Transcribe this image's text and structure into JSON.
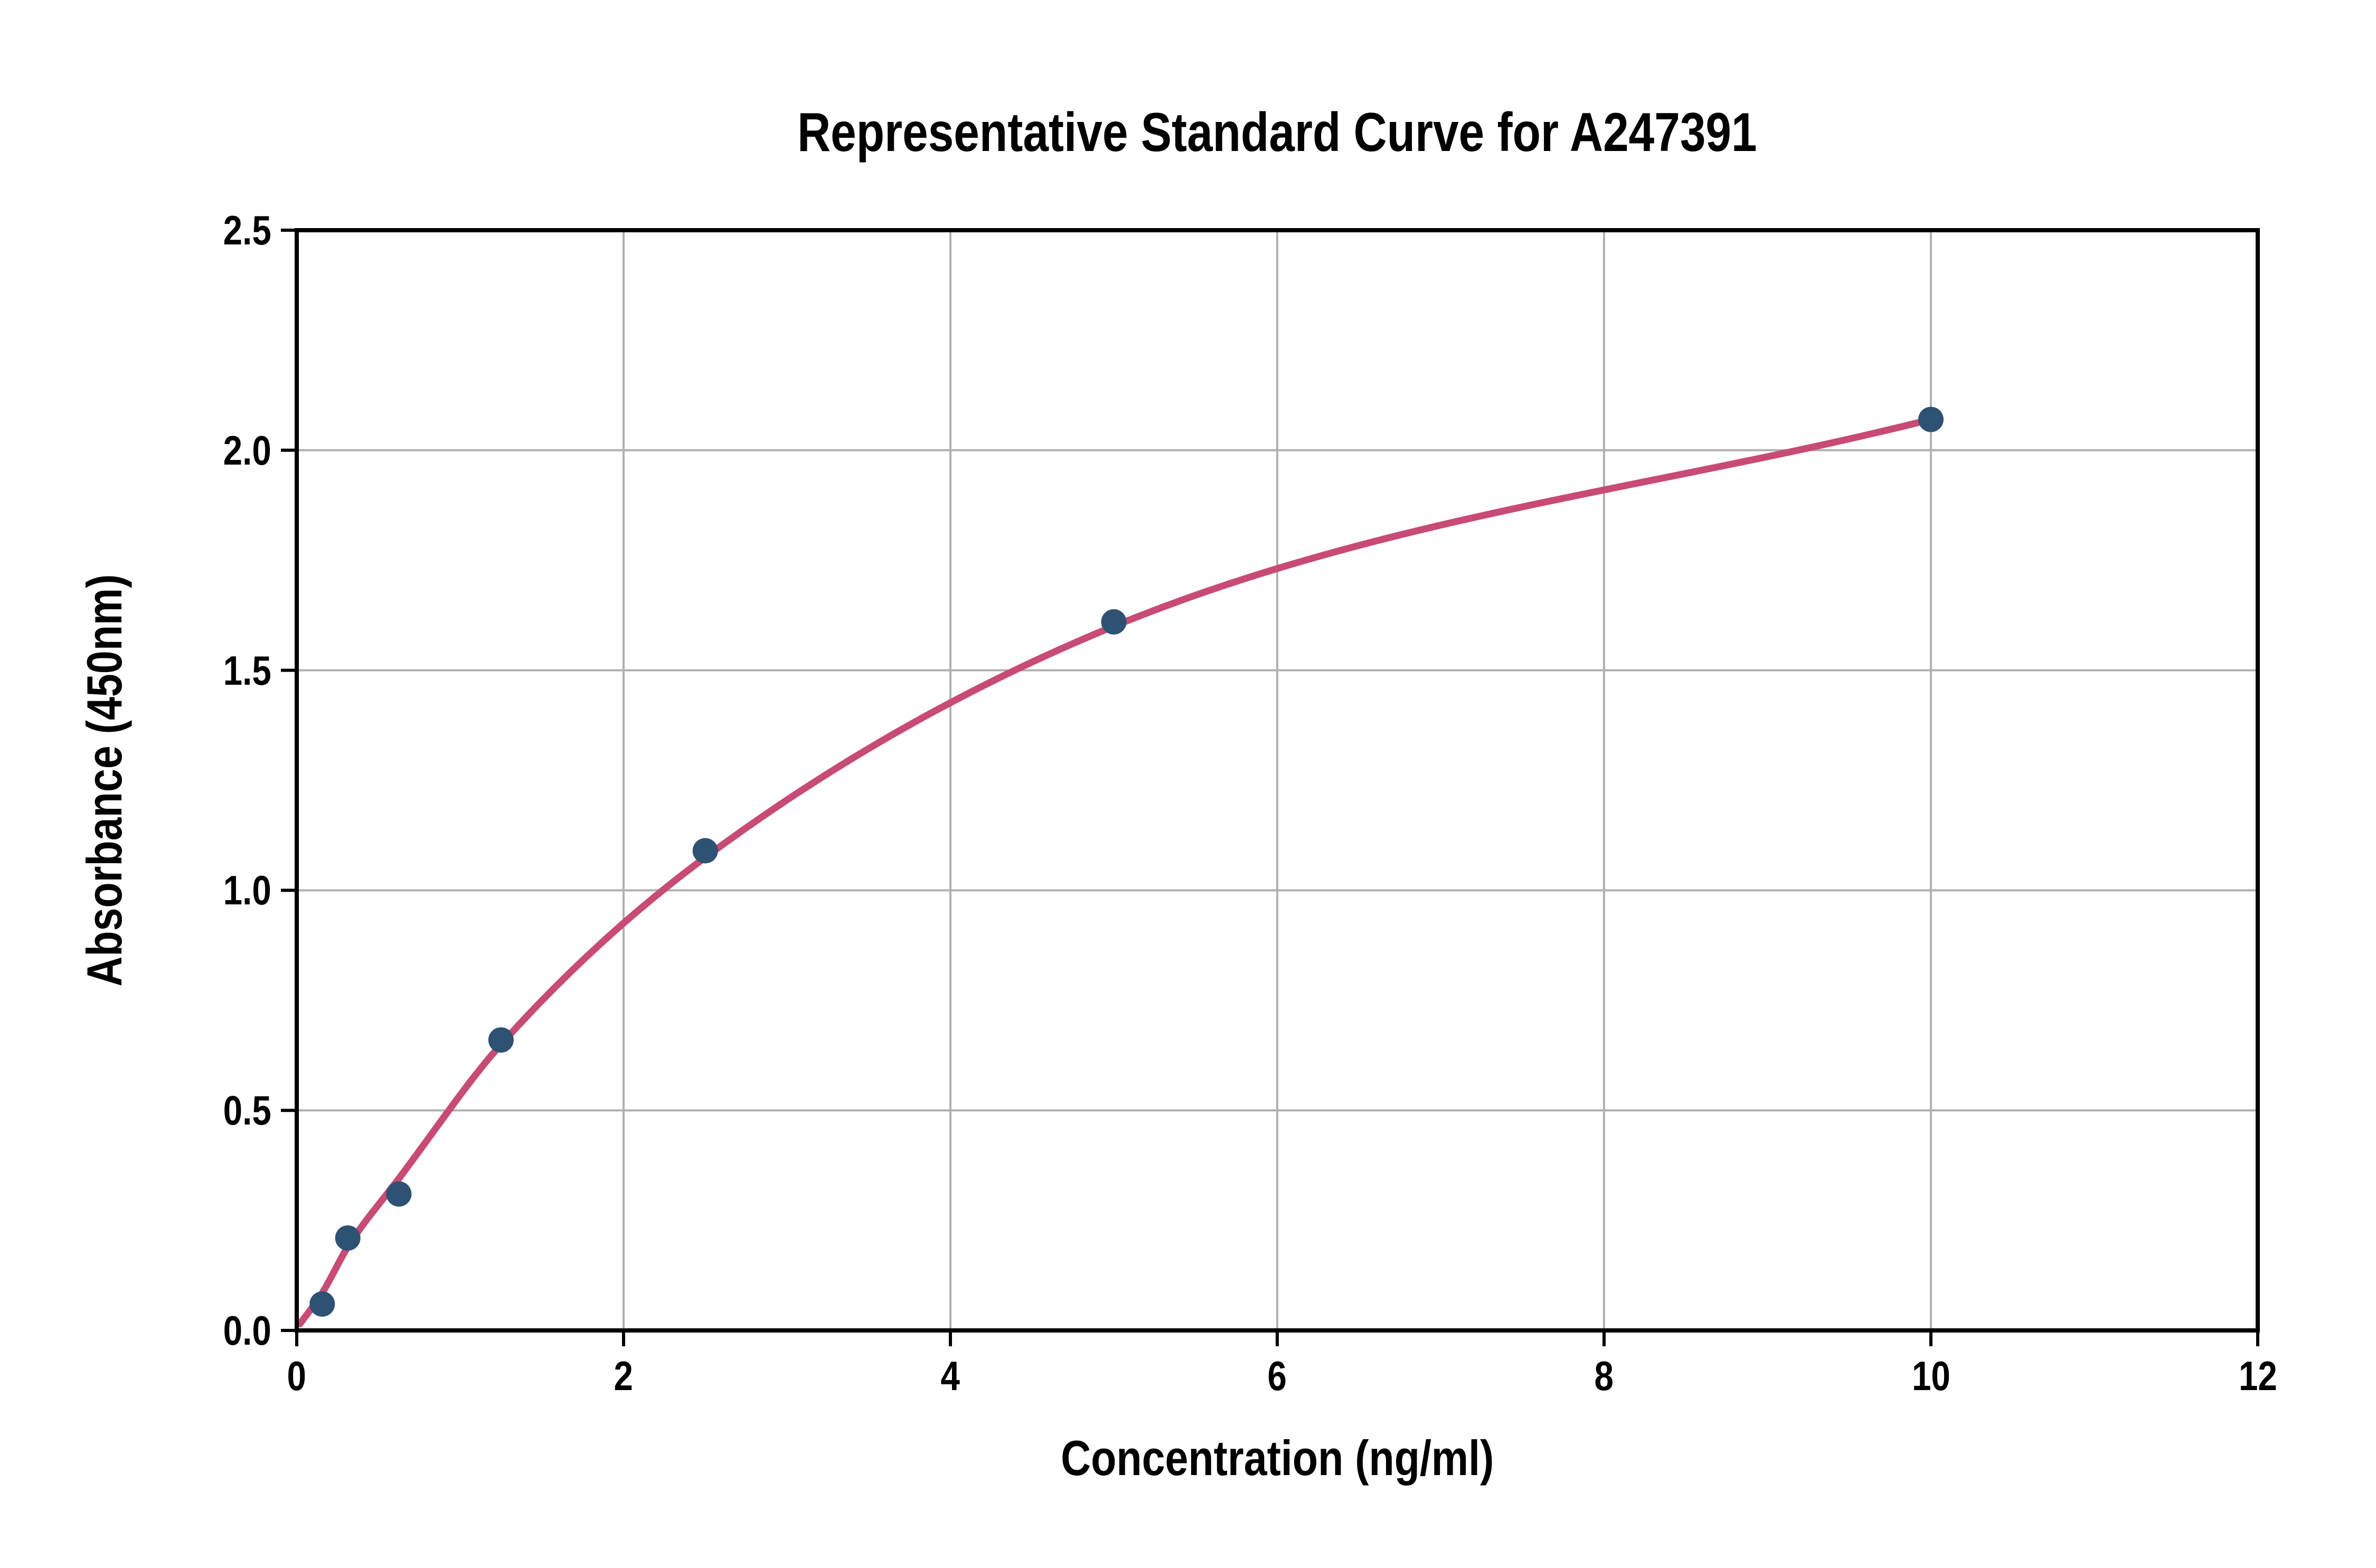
{
  "title": "Representative Standard Curve for A247391",
  "chart_data": {
    "type": "scatter",
    "title": "Representative Standard Curve for A247391",
    "xlabel": "Concentration (ng/ml)",
    "ylabel": "Absorbance (450nm)",
    "xlim": [
      0,
      12
    ],
    "ylim": [
      0,
      2.5
    ],
    "x_tick_values": [
      0,
      2,
      4,
      6,
      8,
      10,
      12
    ],
    "x_tick_labels": [
      "0",
      "2",
      "4",
      "6",
      "8",
      "10",
      "12"
    ],
    "y_tick_values": [
      0,
      0.5,
      1,
      1.5,
      2,
      2.5
    ],
    "y_tick_labels": [
      "0.0",
      "0.5",
      "1.0",
      "1.5",
      "2.0",
      "2.5"
    ],
    "grid": true,
    "legend": null,
    "points": {
      "x": [
        0.156,
        0.3125,
        0.625,
        1.25,
        2.5,
        5,
        10
      ],
      "y": [
        0.06,
        0.21,
        0.31,
        0.66,
        1.09,
        1.61,
        2.07
      ]
    },
    "fit_curve": [
      [
        0.02,
        0.015
      ],
      [
        0.156,
        0.085
      ],
      [
        0.3125,
        0.19
      ],
      [
        0.625,
        0.345
      ],
      [
        1.25,
        0.65
      ],
      [
        2.5,
        1.075
      ],
      [
        5,
        1.6
      ],
      [
        10,
        2.07
      ]
    ],
    "colors": {
      "curve": "#c84b74",
      "points": "#2f5173",
      "grid": "#b0b0b0",
      "axis": "#000000",
      "background": "#ffffff",
      "text": "#000000"
    }
  }
}
